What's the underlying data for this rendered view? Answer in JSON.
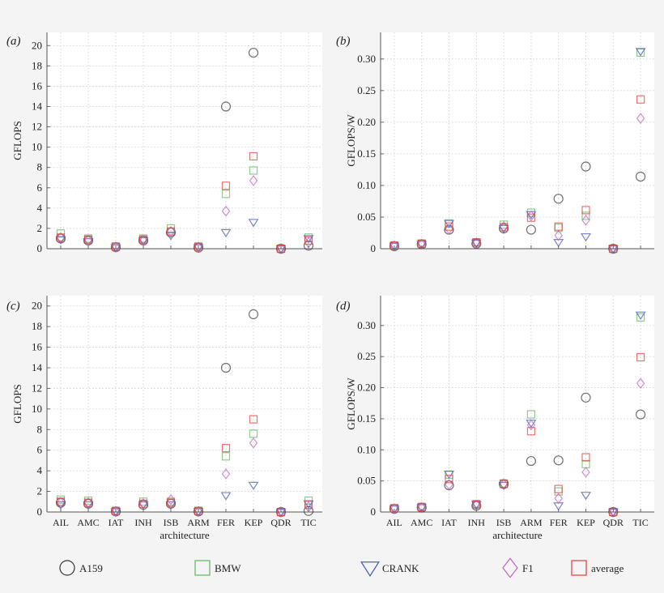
{
  "legend": [
    {
      "name": "A159",
      "marker": "circle",
      "color": "#333333"
    },
    {
      "name": "BMW",
      "marker": "square",
      "color": "#5cb85c"
    },
    {
      "name": "CRANK",
      "marker": "triangle-down",
      "color": "#3f51b5"
    },
    {
      "name": "F1",
      "marker": "diamond",
      "color": "#c060c0"
    },
    {
      "name": "average",
      "marker": "square",
      "color": "#e53935"
    }
  ],
  "chart_data": [
    {
      "type": "scatter",
      "panel_label": "(a)",
      "ylabel": "GFLOPS",
      "xlabel": "",
      "categories": [
        "AIL",
        "AMC",
        "IAT",
        "INH",
        "ISB",
        "ARM",
        "FER",
        "KEP",
        "QDR",
        "TIC"
      ],
      "show_xticklabels": false,
      "ylim": [
        0,
        21.3
      ],
      "yticks": [
        "0",
        "2",
        "4",
        "6",
        "8",
        "10",
        "12",
        "14",
        "16",
        "18",
        "20"
      ],
      "ytick_values": [
        0,
        2,
        4,
        6,
        8,
        10,
        12,
        14,
        16,
        18,
        20
      ],
      "grid": true,
      "series": [
        {
          "name": "A159",
          "values": [
            1.0,
            0.8,
            0.15,
            0.8,
            1.6,
            0.1,
            14.0,
            19.3,
            0,
            0.3
          ]
        },
        {
          "name": "BMW",
          "values": [
            1.5,
            1.0,
            0.2,
            1.0,
            2.0,
            0.2,
            5.4,
            7.7,
            0,
            1.1
          ]
        },
        {
          "name": "CRANK",
          "values": [
            0.9,
            0.7,
            0.1,
            0.8,
            1.3,
            0.1,
            1.6,
            2.6,
            0,
            1.0
          ]
        },
        {
          "name": "F1",
          "values": [
            1.1,
            0.8,
            0.15,
            0.8,
            1.7,
            0.15,
            3.7,
            6.7,
            0,
            0.6
          ]
        },
        {
          "name": "average",
          "values": [
            1.1,
            0.9,
            0.2,
            0.9,
            1.7,
            0.2,
            6.2,
            9.1,
            0,
            0.8
          ]
        }
      ]
    },
    {
      "type": "scatter",
      "panel_label": "(b)",
      "ylabel": "GFLOPS/W",
      "xlabel": "",
      "categories": [
        "AIL",
        "AMC",
        "IAT",
        "INH",
        "ISB",
        "ARM",
        "FER",
        "KEP",
        "QDR",
        "TIC"
      ],
      "show_xticklabels": false,
      "ylim": [
        0,
        0.342
      ],
      "yticks": [
        "0",
        "0.05",
        "0.10",
        "0.15",
        "0.20",
        "0.25",
        "0.30"
      ],
      "ytick_values": [
        0,
        0.05,
        0.1,
        0.15,
        0.2,
        0.25,
        0.3
      ],
      "grid": true,
      "series": [
        {
          "name": "A159",
          "values": [
            0.004,
            0.007,
            0.03,
            0.008,
            0.032,
            0.03,
            0.079,
            0.13,
            0,
            0.114
          ]
        },
        {
          "name": "BMW",
          "values": [
            0.005,
            0.008,
            0.04,
            0.01,
            0.038,
            0.057,
            0.033,
            0.052,
            0,
            0.31
          ]
        },
        {
          "name": "CRANK",
          "values": [
            0.004,
            0.007,
            0.04,
            0.009,
            0.032,
            0.054,
            0.01,
            0.019,
            0,
            0.312
          ]
        },
        {
          "name": "F1",
          "values": [
            0.004,
            0.007,
            0.031,
            0.009,
            0.035,
            0.052,
            0.021,
            0.045,
            0,
            0.206
          ]
        },
        {
          "name": "average",
          "values": [
            0.005,
            0.008,
            0.035,
            0.01,
            0.034,
            0.049,
            0.035,
            0.061,
            0,
            0.236
          ]
        }
      ]
    },
    {
      "type": "scatter",
      "panel_label": "(c)",
      "ylabel": "GFLOPS",
      "xlabel": "architecture",
      "categories": [
        "AIL",
        "AMC",
        "IAT",
        "INH",
        "ISB",
        "ARM",
        "FER",
        "KEP",
        "QDR",
        "TIC"
      ],
      "show_xticklabels": true,
      "ylim": [
        0,
        21.0
      ],
      "yticks": [
        "0",
        "2",
        "4",
        "6",
        "8",
        "10",
        "12",
        "14",
        "16",
        "18",
        "20"
      ],
      "ytick_values": [
        0,
        2,
        4,
        6,
        8,
        10,
        12,
        14,
        16,
        18,
        20
      ],
      "grid": true,
      "series": [
        {
          "name": "A159",
          "values": [
            0.9,
            0.8,
            0.05,
            0.7,
            0.8,
            0.05,
            14.0,
            19.2,
            0,
            0.1
          ]
        },
        {
          "name": "BMW",
          "values": [
            1.2,
            1.1,
            0.1,
            1.0,
            1.0,
            0.1,
            5.4,
            7.6,
            0,
            1.1
          ]
        },
        {
          "name": "CRANK",
          "values": [
            0.7,
            0.7,
            0.05,
            0.7,
            0.7,
            0.05,
            1.6,
            2.6,
            0,
            0.8
          ]
        },
        {
          "name": "F1",
          "values": [
            0.9,
            0.9,
            0.05,
            0.8,
            1.2,
            0.05,
            3.7,
            6.7,
            0,
            0.5
          ]
        },
        {
          "name": "average",
          "values": [
            1.0,
            0.9,
            0.1,
            0.8,
            0.9,
            0.1,
            6.2,
            9.0,
            0,
            0.7
          ]
        }
      ]
    },
    {
      "type": "scatter",
      "panel_label": "(d)",
      "ylabel": "GFLOPS/W",
      "xlabel": "architecture",
      "categories": [
        "AIL",
        "AMC",
        "IAT",
        "INH",
        "ISB",
        "ARM",
        "FER",
        "KEP",
        "QDR",
        "TIC"
      ],
      "show_xticklabels": true,
      "ylim": [
        0,
        0.348
      ],
      "yticks": [
        "0",
        "0.05",
        "0.10",
        "0.15",
        "0.20",
        "0.25",
        "0.30"
      ],
      "ytick_values": [
        0,
        0.05,
        0.1,
        0.15,
        0.2,
        0.25,
        0.3
      ],
      "grid": true,
      "series": [
        {
          "name": "A159",
          "values": [
            0.005,
            0.007,
            0.043,
            0.01,
            0.045,
            0.082,
            0.083,
            0.184,
            0,
            0.157
          ]
        },
        {
          "name": "BMW",
          "values": [
            0.006,
            0.008,
            0.06,
            0.013,
            0.046,
            0.157,
            0.033,
            0.077,
            0,
            0.313
          ]
        },
        {
          "name": "CRANK",
          "values": [
            0.005,
            0.007,
            0.061,
            0.012,
            0.043,
            0.143,
            0.01,
            0.027,
            0,
            0.317
          ]
        },
        {
          "name": "F1",
          "values": [
            0.005,
            0.007,
            0.044,
            0.011,
            0.045,
            0.14,
            0.022,
            0.064,
            0,
            0.207
          ]
        },
        {
          "name": "average",
          "values": [
            0.006,
            0.008,
            0.053,
            0.012,
            0.045,
            0.13,
            0.037,
            0.088,
            0,
            0.249
          ]
        }
      ]
    }
  ]
}
